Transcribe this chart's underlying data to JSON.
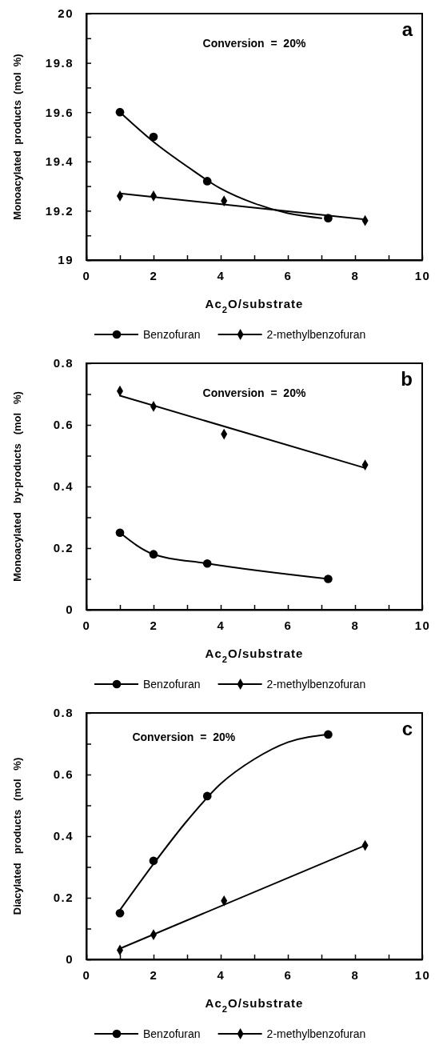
{
  "chart_data": [
    {
      "type": "scatter",
      "title": "a",
      "xlabel": "Ac$_{2}$O/substrate",
      "ylabel": "Monoacylated  products  (mol  %)",
      "annotations": [
        "Conversion  =  20%"
      ],
      "legend": "bottom",
      "xlim": [
        0,
        10
      ],
      "ylim": [
        19,
        20
      ],
      "xticks": [
        0,
        {
          "value": 1,
          "label": null
        },
        2,
        {
          "value": 3,
          "label": null
        },
        4,
        {
          "value": 5,
          "label": null
        },
        6,
        {
          "value": 7,
          "label": null
        },
        8,
        {
          "value": 9,
          "label": null
        },
        10
      ],
      "yticks": [
        19,
        {
          "value": 19.1,
          "label": null
        },
        19.2,
        {
          "value": 19.3,
          "label": null
        },
        19.4,
        {
          "value": 19.5,
          "label": null
        },
        19.6,
        {
          "value": 19.7,
          "label": null
        },
        19.8,
        {
          "value": 19.9,
          "label": null
        },
        20
      ],
      "series": [
        {
          "name": "Benzofuran",
          "color": "#000000",
          "marker": "circle",
          "x": [
            1,
            2,
            3.6,
            7.2
          ],
          "values": [
            19.6,
            19.5,
            19.32,
            19.17
          ]
        },
        {
          "name": "2-methylbenzofuran",
          "color": "#000000",
          "marker": "diamond",
          "x": [
            1,
            2,
            4.1,
            8.3
          ],
          "values": [
            19.26,
            19.26,
            19.24,
            19.16
          ]
        },
        {
          "type": "line",
          "color": "#000000",
          "marker": "none",
          "x": [
            1,
            2,
            3,
            4,
            5,
            6,
            7
          ],
          "values": [
            19.6,
            19.48,
            19.38,
            19.29,
            19.23,
            19.19,
            19.17
          ]
        },
        {
          "type": "line",
          "color": "#000000",
          "marker": "none",
          "x": [
            1,
            8.3
          ],
          "values": [
            19.27,
            19.165
          ]
        }
      ]
    },
    {
      "type": "scatter",
      "title": "b",
      "xlabel": "Ac$_{2}$O/substrate",
      "ylabel": "Monoacylated   by-products   (mol   %)",
      "annotations": [
        "Conversion  =  20%"
      ],
      "legend": "bottom",
      "xlim": [
        0,
        10
      ],
      "ylim": [
        0,
        0.8
      ],
      "xticks": [
        0,
        {
          "value": 1,
          "label": null
        },
        2,
        {
          "value": 3,
          "label": null
        },
        4,
        {
          "value": 5,
          "label": null
        },
        6,
        {
          "value": 7,
          "label": null
        },
        8,
        {
          "value": 9,
          "label": null
        },
        10
      ],
      "yticks": [
        0,
        {
          "value": 0.1,
          "label": null
        },
        0.2,
        {
          "value": 0.3,
          "label": null
        },
        0.4,
        {
          "value": 0.5,
          "label": null
        },
        0.6,
        {
          "value": 0.7,
          "label": null
        },
        0.8
      ],
      "series": [
        {
          "type": "line",
          "name": "Benzofuran",
          "color": "#000000",
          "marker": "circle",
          "x": [
            1,
            2,
            3.6,
            7.2
          ],
          "values": [
            0.25,
            0.18,
            0.15,
            0.1
          ]
        },
        {
          "name": "2-methylbenzofuran",
          "color": "#000000",
          "marker": "diamond",
          "x": [
            1,
            2,
            4.1,
            8.3
          ],
          "values": [
            0.71,
            0.66,
            0.57,
            0.47
          ]
        },
        {
          "type": "line",
          "color": "#000000",
          "marker": "none",
          "x": [
            1,
            8.3
          ],
          "values": [
            0.695,
            0.46
          ]
        }
      ]
    },
    {
      "type": "scatter",
      "title": "c",
      "xlabel": "Ac$_{2}$O/substrate",
      "ylabel": "Diacylated   products   (mol   %)",
      "annotations": [
        "Conversion  =  20%"
      ],
      "legend": "bottom",
      "xlim": [
        0,
        10
      ],
      "ylim": [
        0,
        0.8
      ],
      "xticks": [
        0,
        {
          "value": 1,
          "label": null
        },
        2,
        {
          "value": 3,
          "label": null
        },
        4,
        {
          "value": 5,
          "label": null
        },
        6,
        {
          "value": 7,
          "label": null
        },
        8,
        {
          "value": 9,
          "label": null
        },
        10
      ],
      "yticks": [
        0,
        {
          "value": 0.1,
          "label": null
        },
        0.2,
        {
          "value": 0.3,
          "label": null
        },
        0.4,
        {
          "value": 0.5,
          "label": null
        },
        0.6,
        {
          "value": 0.7,
          "label": null
        },
        0.8
      ],
      "series": [
        {
          "name": "Benzofuran",
          "color": "#000000",
          "marker": "circle",
          "x": [
            1,
            2,
            3.6,
            7.2
          ],
          "values": [
            0.15,
            0.32,
            0.53,
            0.73
          ]
        },
        {
          "name": "2-methylbenzofuran",
          "color": "#000000",
          "marker": "diamond",
          "x": [
            1,
            2,
            4.1,
            8.3
          ],
          "values": [
            0.03,
            0.08,
            0.19,
            0.37
          ]
        },
        {
          "type": "line",
          "color": "#000000",
          "marker": "none",
          "x": [
            1,
            2,
            3,
            4,
            5,
            6,
            7.2
          ],
          "values": [
            0.16,
            0.31,
            0.45,
            0.57,
            0.65,
            0.705,
            0.73
          ]
        },
        {
          "type": "line",
          "color": "#000000",
          "marker": "none",
          "x": [
            1,
            8.3
          ],
          "values": [
            0.035,
            0.37
          ]
        }
      ]
    }
  ]
}
